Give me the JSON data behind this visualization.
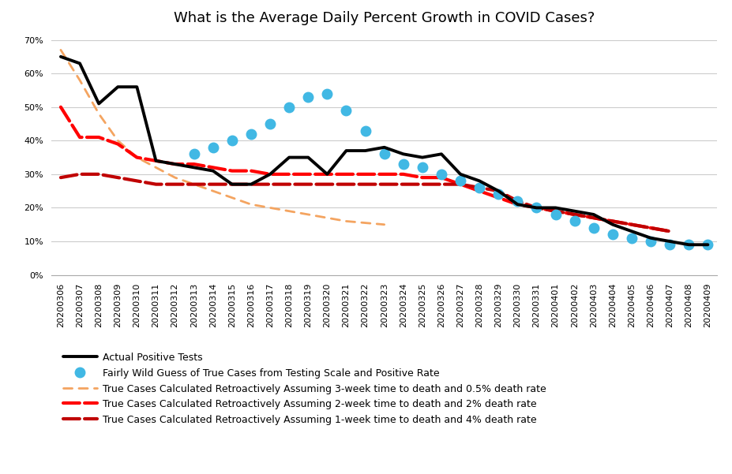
{
  "title": "What is the Average Daily Percent Growth in COVID Cases?",
  "background_color": "#ffffff",
  "x_labels": [
    "20200306",
    "20200307",
    "20200308",
    "20200309",
    "20200310",
    "20200311",
    "20200312",
    "20200313",
    "20200314",
    "20200315",
    "20200316",
    "20200317",
    "20200318",
    "20200319",
    "20200320",
    "20200321",
    "20200322",
    "20200323",
    "20200324",
    "20200325",
    "20200326",
    "20200327",
    "20200328",
    "20200329",
    "20200330",
    "20200331",
    "20200401",
    "20200402",
    "20200403",
    "20200404",
    "20200405",
    "20200406",
    "20200407",
    "20200408",
    "20200409"
  ],
  "series": {
    "actual": {
      "label": "Actual Positive Tests",
      "color": "#000000",
      "linewidth": 2.8,
      "values": [
        0.65,
        0.63,
        0.51,
        0.56,
        0.56,
        0.34,
        0.33,
        0.32,
        0.31,
        0.27,
        0.27,
        0.3,
        0.35,
        0.35,
        0.3,
        0.37,
        0.37,
        0.38,
        0.36,
        0.35,
        0.36,
        0.3,
        0.28,
        0.25,
        0.21,
        0.2,
        0.2,
        0.19,
        0.18,
        0.15,
        0.13,
        0.11,
        0.1,
        0.09,
        0.09
      ]
    },
    "wild_guess": {
      "label": "Fairly Wild Guess of True Cases from Testing Scale and Positive Rate",
      "color": "#41b8e4",
      "markersize": 9,
      "values": [
        null,
        null,
        null,
        null,
        null,
        null,
        null,
        0.36,
        0.38,
        0.4,
        0.42,
        0.45,
        0.5,
        0.53,
        0.54,
        0.49,
        0.43,
        0.36,
        0.33,
        0.32,
        0.3,
        0.28,
        0.26,
        0.24,
        0.22,
        0.2,
        0.18,
        0.16,
        0.14,
        0.12,
        0.11,
        0.1,
        0.09,
        0.09,
        0.09
      ]
    },
    "retro_3wk": {
      "label": "True Cases Calculated Retroactively Assuming 3-week time to death and 0.5% death rate",
      "color": "#f4a460",
      "linewidth": 2.0,
      "values": [
        0.67,
        0.58,
        0.48,
        0.4,
        0.35,
        0.32,
        0.29,
        0.27,
        0.25,
        0.23,
        0.21,
        0.2,
        0.19,
        0.18,
        0.17,
        0.16,
        0.155,
        0.15,
        null,
        null,
        null,
        null,
        null,
        null,
        null,
        null,
        null,
        null,
        null,
        null,
        null,
        null,
        null,
        null,
        null
      ]
    },
    "retro_2wk": {
      "label": "True Cases Calculated Retroactively Assuming 2-week time to death and 2% death rate",
      "color": "#ff0000",
      "linewidth": 3.0,
      "values": [
        0.5,
        0.41,
        0.41,
        0.39,
        0.35,
        0.34,
        0.33,
        0.33,
        0.32,
        0.31,
        0.31,
        0.3,
        0.3,
        0.3,
        0.3,
        0.3,
        0.3,
        0.3,
        0.3,
        0.29,
        0.29,
        0.27,
        0.25,
        0.23,
        0.21,
        0.2,
        0.19,
        0.18,
        0.17,
        0.16,
        0.15,
        0.14,
        0.13,
        null,
        null
      ]
    },
    "retro_1wk": {
      "label": "True Cases Calculated Retroactively Assuming 1-week time to death and 4% death rate",
      "color": "#c00000",
      "linewidth": 3.0,
      "values": [
        0.29,
        0.3,
        0.3,
        0.29,
        0.28,
        0.27,
        0.27,
        0.27,
        0.27,
        0.27,
        0.27,
        0.27,
        0.27,
        0.27,
        0.27,
        0.27,
        0.27,
        0.27,
        0.27,
        0.27,
        0.27,
        0.27,
        0.26,
        0.25,
        0.22,
        0.2,
        0.19,
        0.18,
        0.17,
        0.16,
        0.15,
        0.14,
        0.13,
        null,
        null
      ]
    }
  },
  "ylim": [
    0.0,
    0.72
  ],
  "yticks": [
    0.0,
    0.1,
    0.2,
    0.3,
    0.4,
    0.5,
    0.6,
    0.7
  ],
  "title_fontsize": 13,
  "legend_fontsize": 9,
  "tick_fontsize": 8
}
